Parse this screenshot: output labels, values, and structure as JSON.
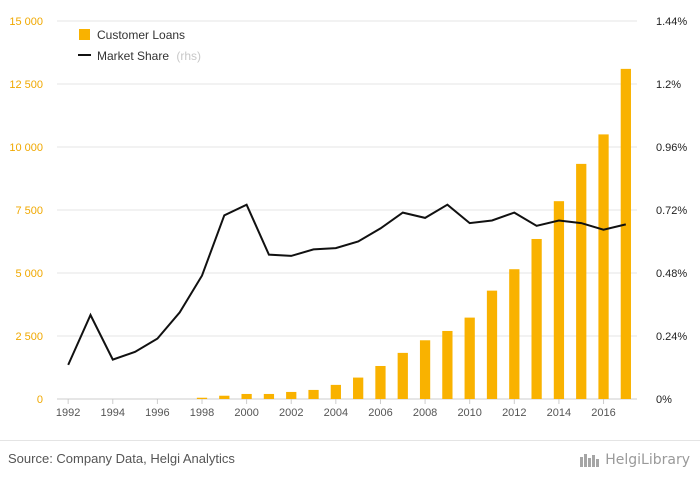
{
  "chart_data": {
    "type": "bar",
    "title": "",
    "xlabel": "",
    "ylabel": "",
    "categories": [
      "1992",
      "1993",
      "1994",
      "1995",
      "1996",
      "1997",
      "1998",
      "1999",
      "2000",
      "2001",
      "2002",
      "2003",
      "2004",
      "2005",
      "2006",
      "2007",
      "2008",
      "2009",
      "2010",
      "2011",
      "2012",
      "2013",
      "2014",
      "2015",
      "2016",
      "2017"
    ],
    "x_tick_labels": [
      "1992",
      "1994",
      "1996",
      "1998",
      "2000",
      "2002",
      "2004",
      "2006",
      "2008",
      "2010",
      "2012",
      "2014",
      "2016"
    ],
    "series": [
      {
        "name": "Customer Loans",
        "type": "bar",
        "axis": "left",
        "color": "#f9b200",
        "values": [
          0,
          0,
          0,
          0,
          0,
          0,
          50,
          130,
          200,
          200,
          280,
          360,
          560,
          850,
          1310,
          1830,
          2330,
          2700,
          3230,
          4300,
          5150,
          6350,
          7850,
          9330,
          10500,
          13100
        ]
      },
      {
        "name": "Market Share",
        "name_suffix": "(rhs)",
        "type": "line",
        "axis": "right",
        "color": "#111111",
        "values": [
          0.13,
          0.32,
          0.15,
          0.18,
          0.23,
          0.33,
          0.47,
          0.7,
          0.74,
          0.55,
          0.545,
          0.57,
          0.575,
          0.6,
          0.65,
          0.71,
          0.69,
          0.74,
          0.67,
          0.68,
          0.71,
          0.66,
          0.68,
          0.67,
          0.645,
          0.665
        ]
      }
    ],
    "y_left": {
      "min": 0,
      "max": 15000,
      "ticks": [
        0,
        2500,
        5000,
        7500,
        10000,
        12500,
        15000
      ],
      "tick_labels": [
        "0",
        "2 500",
        "5 000",
        "7 500",
        "10 000",
        "12 500",
        "15 000"
      ],
      "color": "#f0a800"
    },
    "y_right": {
      "min": 0,
      "max": 1.44,
      "ticks": [
        0,
        0.24,
        0.48,
        0.72,
        0.96,
        1.2,
        1.44
      ],
      "tick_labels": [
        "0%",
        "0.24%",
        "0.48%",
        "0.72%",
        "0.96%",
        "1.2%",
        "1.44%"
      ],
      "color": "#222222"
    },
    "grid": true,
    "legend_position": "top-left"
  },
  "footer": {
    "source": "Source: Company Data, Helgi Analytics",
    "brand": "HelgiLibrary"
  }
}
